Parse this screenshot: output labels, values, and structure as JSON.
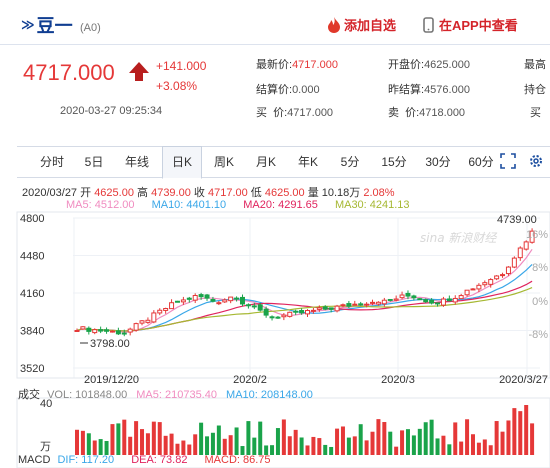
{
  "header": {
    "name_arrow": "≫",
    "name": "豆一",
    "code": "(A0)",
    "add_fav": "添加自选",
    "app_view": "在APP中查看"
  },
  "quote": {
    "price": "4717.000",
    "change": "+141.000",
    "change_pct": "+3.08%",
    "time": "2020-03-27 09:25:34",
    "fields": {
      "latest_label": "最新价:",
      "latest_value": "4717.000",
      "open_label": "开盘价:",
      "open_value": "4625.000",
      "col4_top": "最高",
      "settle_label": "结算价:",
      "settle_value": "0.000",
      "prev_settle_label": "昨结算:",
      "prev_settle_value": "4576.000",
      "col4_mid": "持仓",
      "buy_label": "买  价:",
      "buy_value": "4717.000",
      "sell_label": "卖  价:",
      "sell_value": "4718.000",
      "col4_bot": "买"
    }
  },
  "tabs": [
    "分时",
    "5日",
    "年线",
    "日K",
    "周K",
    "月K",
    "年K",
    "5分",
    "15分",
    "30分",
    "60分"
  ],
  "active_tab": "日K",
  "icons": {
    "fullscreen": "fullscreen-icon",
    "settings": "settings-icon"
  },
  "kline_info": {
    "date": "2020/03/27",
    "open_label": "开",
    "open": "4625.00",
    "high_label": "高",
    "high": "4739.00",
    "close_label": "收",
    "close": "4717.00",
    "low_label": "低",
    "low": "4625.00",
    "vol_label": "量",
    "vol": "10.18万",
    "pct": "2.08%"
  },
  "ma_legend": {
    "ma5": "MA5: 4512.00",
    "ma10": "MA10: 4401.10",
    "ma20": "MA20: 4291.65",
    "ma30": "MA30: 4241.13"
  },
  "colors": {
    "ma5": "#f08cc0",
    "ma10": "#3aa7e8",
    "ma20": "#e0245e",
    "ma30": "#a6b832",
    "up": "#e53838",
    "down": "#1aa34a"
  },
  "chart_data": {
    "type": "candlestick",
    "y_ticks": [
      "4800",
      "4480",
      "4160",
      "3840",
      "3520"
    ],
    "pct_ticks": [
      "16%",
      "8%",
      "0%",
      "-8%"
    ],
    "x_ticks": [
      "2019/12/20",
      "2020/2",
      "2020/3",
      "2020/3/27"
    ],
    "high_label": "4739.00",
    "low_label": "3798.00",
    "ylim": [
      3520,
      4800
    ],
    "volume": {
      "label": "成交",
      "vol_text": "VOL: 101848.00",
      "ma5_text": "MA5: 210735.40",
      "ma10_text": "MA10: 208148.00",
      "y_top": "40",
      "unit": "万"
    },
    "macd": {
      "label": "MACD",
      "dif": "DIF: 117.20",
      "dea": "DEA: 73.82",
      "macd": "MACD: 86.75"
    },
    "watermark": "新浪财经"
  }
}
